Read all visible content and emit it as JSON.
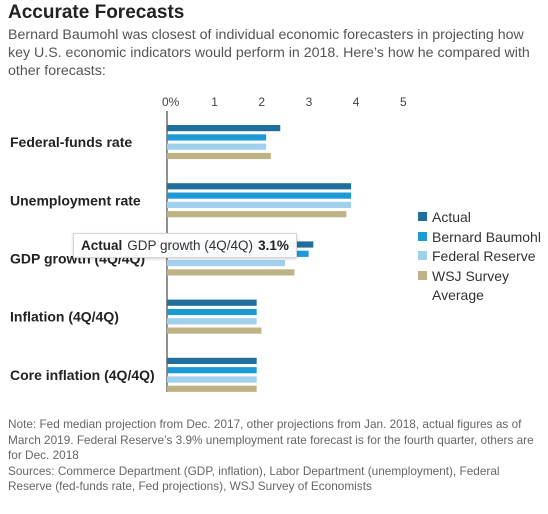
{
  "chart_data": {
    "type": "bar",
    "orientation": "horizontal",
    "title": "Accurate Forecasts",
    "subtitle": "Bernard Baumohl was closest of individual economic forecasters in projecting how key U.S. economic indicators would perform in 2018. Here’s how he compared with other forecasts:",
    "categories": [
      "Federal-funds rate",
      "Unemployment rate",
      "GDP growth (4Q/4Q)",
      "Inflation (4Q/4Q)",
      "Core inflation (4Q/4Q)"
    ],
    "series": [
      {
        "name": "Actual",
        "color": "#1f6e9c",
        "values": [
          2.4,
          3.9,
          3.1,
          1.9,
          1.9
        ]
      },
      {
        "name": "Bernard Baumohl",
        "color": "#1b9ad6",
        "values": [
          2.1,
          3.9,
          3.0,
          1.9,
          1.9
        ]
      },
      {
        "name": "Federal Reserve",
        "color": "#9fd1ef",
        "values": [
          2.1,
          3.9,
          2.5,
          1.9,
          1.9
        ]
      },
      {
        "name": "WSJ Survey Average",
        "color": "#bfb386",
        "values": [
          2.2,
          3.8,
          2.7,
          2.0,
          1.9
        ]
      }
    ],
    "xlim": [
      0,
      5
    ],
    "xticks": [
      0,
      1,
      2,
      3,
      4,
      5
    ],
    "xtick_labels": [
      "0%",
      "1",
      "2",
      "3",
      "4",
      "5"
    ],
    "grid": false,
    "legend_position": "right",
    "tooltip": {
      "series": "Actual",
      "category": "GDP growth (4Q/4Q)",
      "value": "3.1%"
    },
    "notes": [
      "Note: Fed median projection from Dec. 2017, other projections from Jan. 2018, actual figures as of March 2019. Federal Reserve’s 3.9% unemployment rate forecast is for the fourth quarter, others are for Dec. 2018",
      "Sources: Commerce Department (GDP, inflation), Labor Department (unemployment), Federal Reserve (fed-funds rate, Fed projections), WSJ Survey of Economists"
    ]
  }
}
